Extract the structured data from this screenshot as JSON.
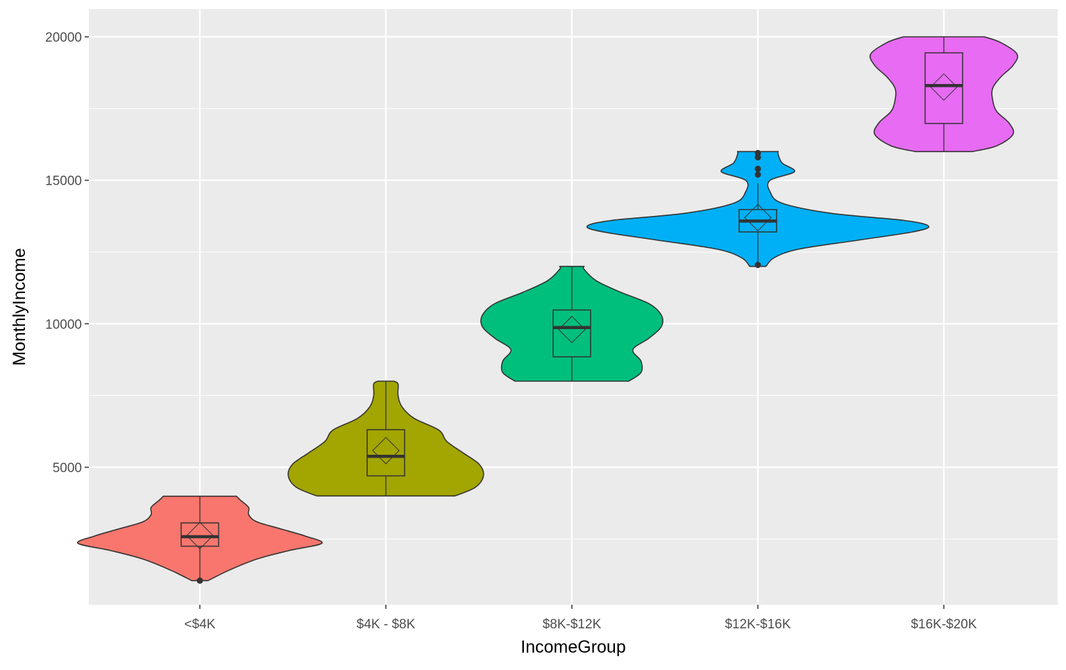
{
  "chart_data": {
    "type": "violin",
    "xlabel": "IncomeGroup",
    "ylabel": "MonthlyIncome",
    "categories": [
      "<$4K",
      "$4K - $8K",
      "$8K-$12K",
      "$12K-$16K",
      "$16K-$20K"
    ],
    "ylim": [
      0,
      20000
    ],
    "yticks": [
      5000,
      10000,
      15000,
      20000
    ],
    "grid": true,
    "legend": "none",
    "groups": [
      {
        "name": "<$4K",
        "color": "#F8766D",
        "min": 1009,
        "max": 3990,
        "q1": 2250,
        "median": 2580,
        "q3": 3060,
        "mean": 2620,
        "whisker_low": 1100,
        "whisker_high": 3990,
        "outliers": [
          1050
        ],
        "density": [
          [
            1050,
            0.02
          ],
          [
            1400,
            0.07
          ],
          [
            1800,
            0.14
          ],
          [
            2100,
            0.22
          ],
          [
            2350,
            0.3
          ],
          [
            2600,
            0.26
          ],
          [
            2850,
            0.2
          ],
          [
            3100,
            0.14
          ],
          [
            3350,
            0.12
          ],
          [
            3600,
            0.12
          ],
          [
            3850,
            0.1
          ],
          [
            3990,
            0.09
          ]
        ]
      },
      {
        "name": "$4K - $8K",
        "color": "#A3A500",
        "min": 4000,
        "max": 8000,
        "q1": 4700,
        "median": 5380,
        "q3": 6310,
        "mean": 5580,
        "whisker_low": 4000,
        "whisker_high": 8000,
        "outliers": [],
        "density": [
          [
            4000,
            0.17
          ],
          [
            4300,
            0.22
          ],
          [
            4700,
            0.24
          ],
          [
            5100,
            0.23
          ],
          [
            5500,
            0.19
          ],
          [
            5900,
            0.15
          ],
          [
            6300,
            0.13
          ],
          [
            6700,
            0.07
          ],
          [
            7100,
            0.04
          ],
          [
            7500,
            0.03
          ],
          [
            7900,
            0.03
          ],
          [
            8000,
            0.02
          ]
        ]
      },
      {
        "name": "$8K-$12K",
        "color": "#00BF7D",
        "min": 8000,
        "max": 12000,
        "q1": 8850,
        "median": 9870,
        "q3": 10480,
        "mean": 9800,
        "whisker_low": 8000,
        "whisker_high": 12000,
        "outliers": [],
        "density": [
          [
            8000,
            0.14
          ],
          [
            8300,
            0.17
          ],
          [
            8700,
            0.17
          ],
          [
            9100,
            0.15
          ],
          [
            9500,
            0.19
          ],
          [
            9900,
            0.22
          ],
          [
            10300,
            0.22
          ],
          [
            10700,
            0.19
          ],
          [
            11100,
            0.12
          ],
          [
            11500,
            0.06
          ],
          [
            11900,
            0.03
          ],
          [
            12000,
            0.03
          ]
        ]
      },
      {
        "name": "$12K-$16K",
        "color": "#00B0F6",
        "min": 12000,
        "max": 16000,
        "q1": 13200,
        "median": 13580,
        "q3": 13980,
        "mean": 13700,
        "whisker_low": 12100,
        "whisker_high": 14900,
        "outliers": [
          12050,
          15200,
          15400,
          15800,
          15950
        ],
        "density": [
          [
            12000,
            0.02
          ],
          [
            12300,
            0.04
          ],
          [
            12600,
            0.1
          ],
          [
            12900,
            0.24
          ],
          [
            13200,
            0.38
          ],
          [
            13400,
            0.42
          ],
          [
            13600,
            0.36
          ],
          [
            13850,
            0.18
          ],
          [
            14200,
            0.06
          ],
          [
            14600,
            0.03
          ],
          [
            15000,
            0.03
          ],
          [
            15300,
            0.09
          ],
          [
            15600,
            0.06
          ],
          [
            15900,
            0.05
          ],
          [
            16000,
            0.05
          ]
        ]
      },
      {
        "name": "$16K-$20K",
        "color": "#E76BF3",
        "min": 16000,
        "max": 20000,
        "q1": 16980,
        "median": 18300,
        "q3": 19440,
        "mean": 18250,
        "whisker_low": 16000,
        "whisker_high": 20000,
        "outliers": [],
        "density": [
          [
            16000,
            0.07
          ],
          [
            16200,
            0.13
          ],
          [
            16600,
            0.17
          ],
          [
            17000,
            0.16
          ],
          [
            17400,
            0.13
          ],
          [
            17800,
            0.12
          ],
          [
            18200,
            0.12
          ],
          [
            18600,
            0.14
          ],
          [
            19000,
            0.17
          ],
          [
            19400,
            0.18
          ],
          [
            19800,
            0.14
          ],
          [
            20000,
            0.1
          ]
        ]
      }
    ]
  }
}
